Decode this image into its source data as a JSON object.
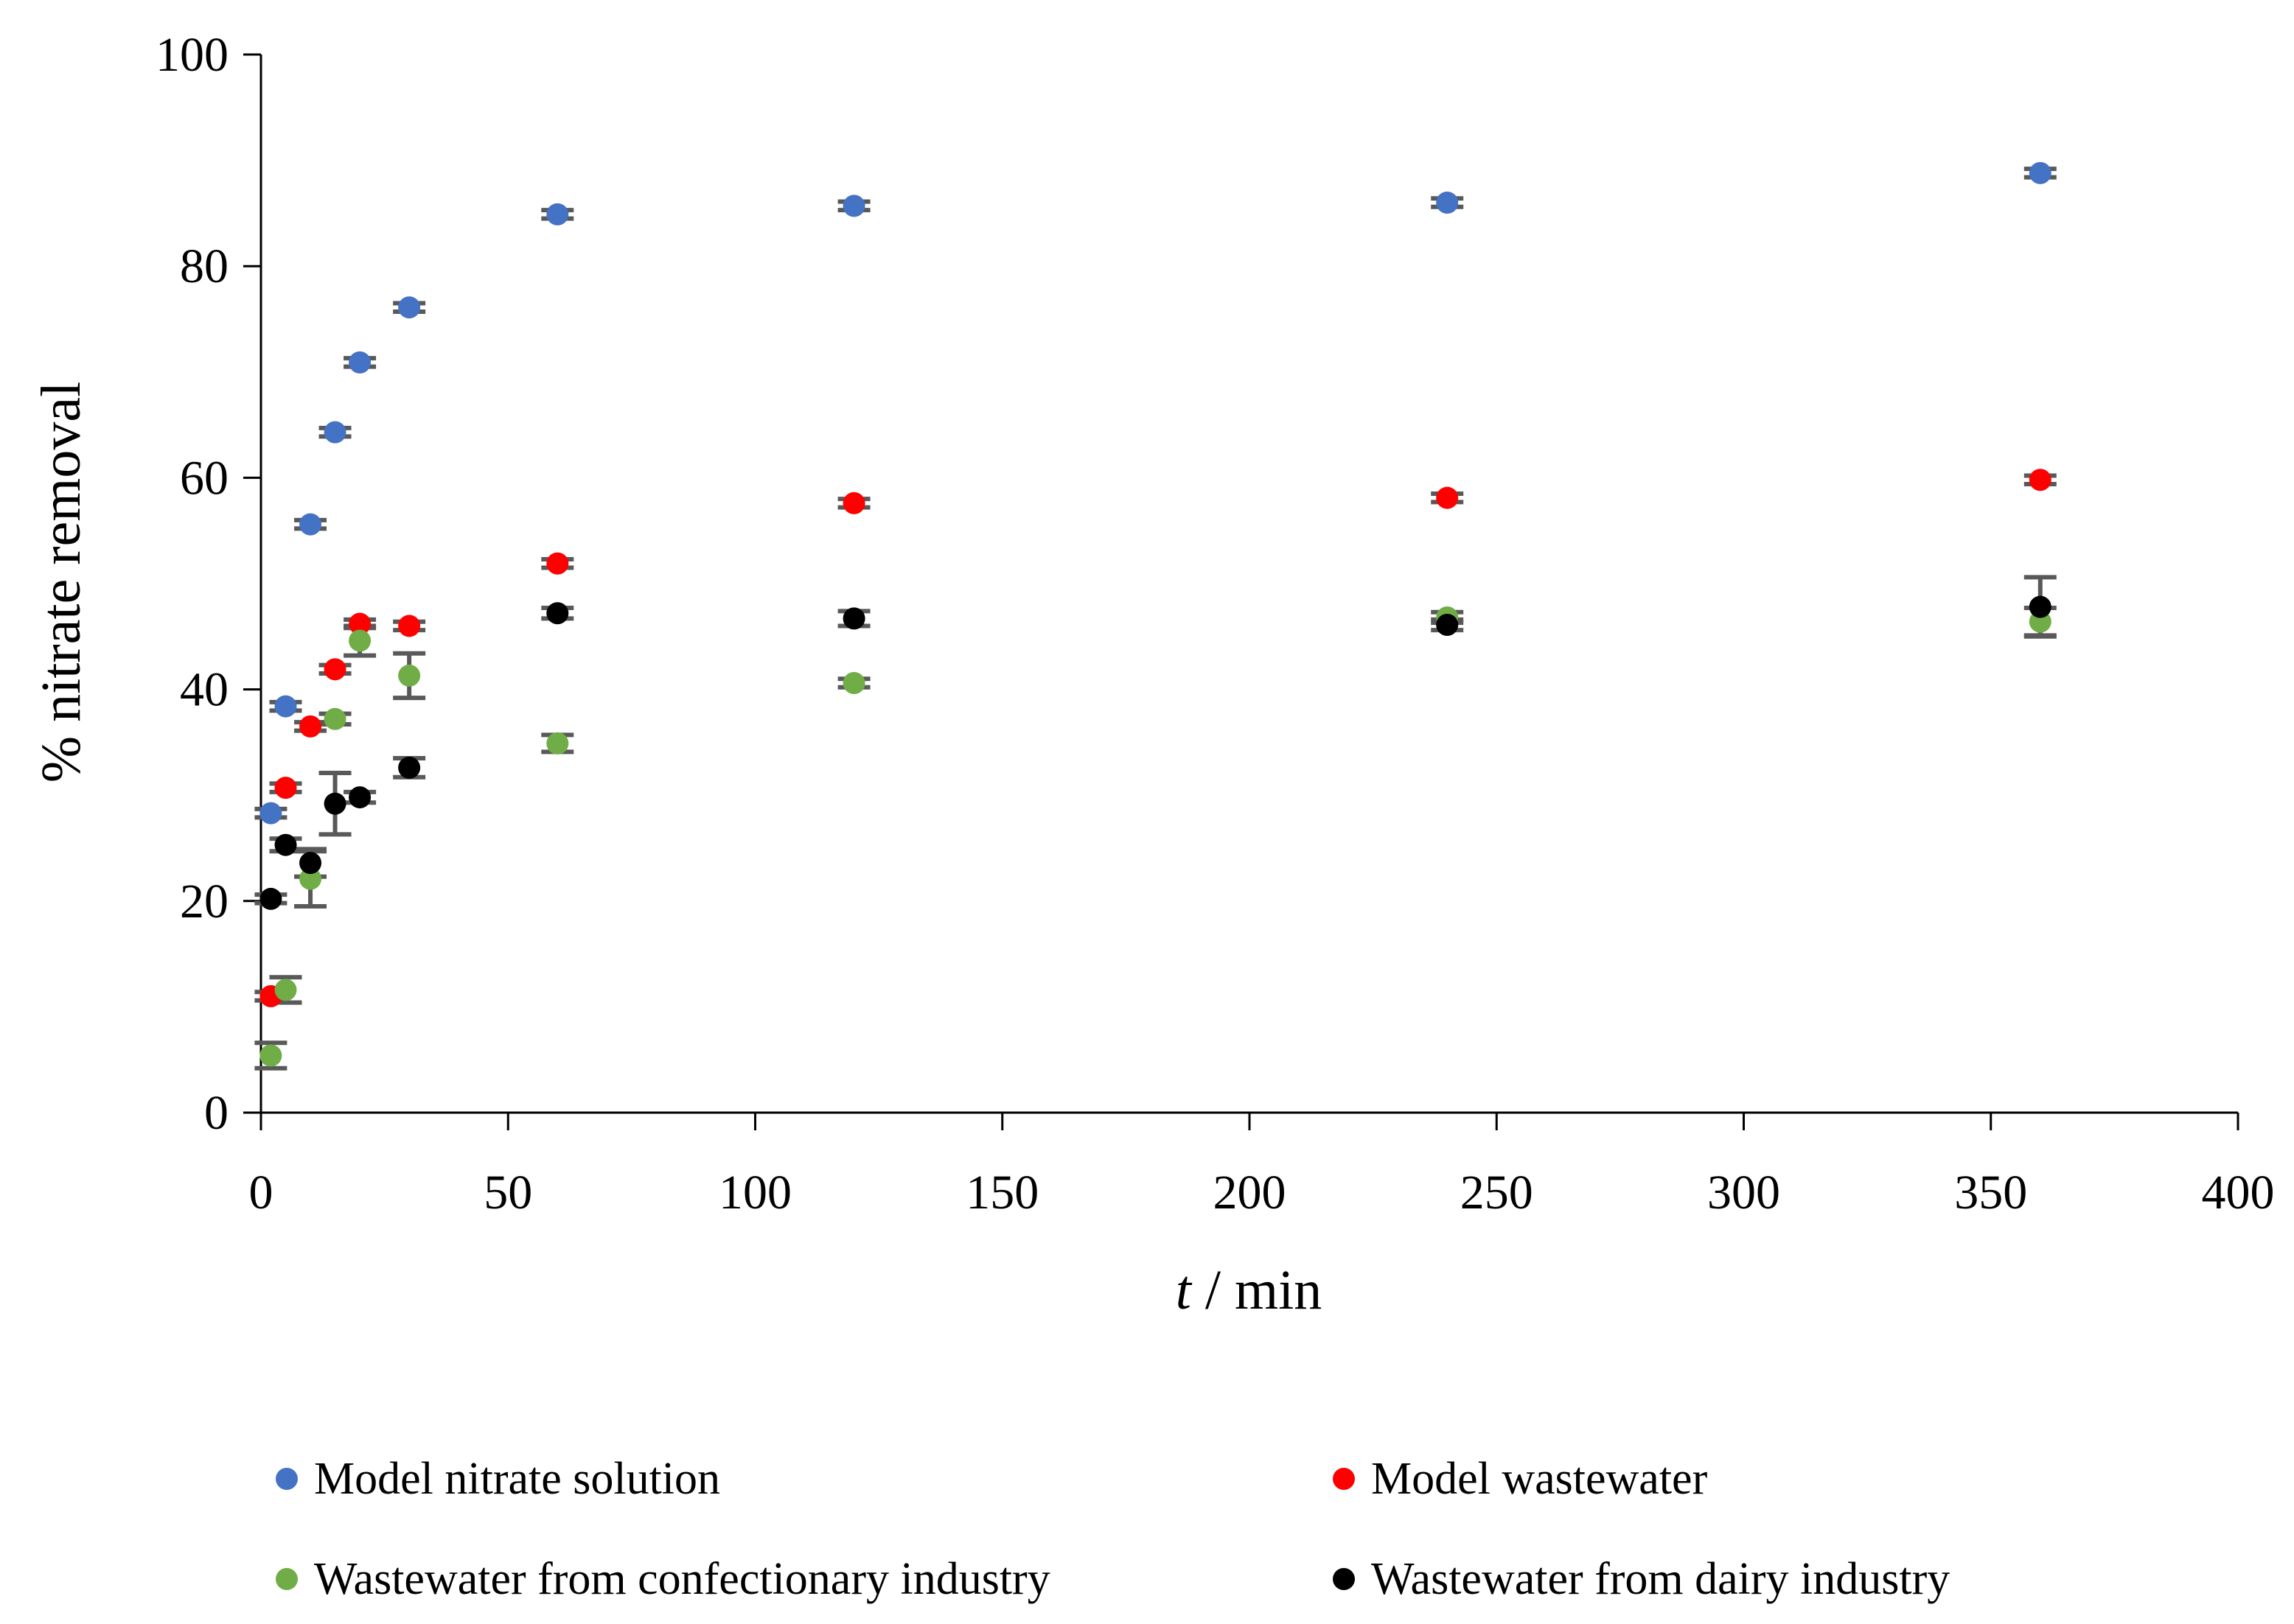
{
  "chart_data": {
    "type": "scatter",
    "title": "",
    "xlabel_italic": "t",
    "xlabel_rest": " / min",
    "ylabel": "% nitrate removal",
    "xlim": [
      0,
      400
    ],
    "ylim": [
      0,
      100
    ],
    "xticks": [
      0,
      50,
      100,
      150,
      200,
      250,
      300,
      350,
      400
    ],
    "yticks": [
      0,
      20,
      40,
      60,
      80,
      100
    ],
    "grid": false,
    "legend_position": "bottom",
    "series": [
      {
        "name": "Model nitrate solution",
        "color": "#4472C4",
        "x": [
          2,
          5,
          10,
          15,
          20,
          30,
          60,
          120,
          240,
          360
        ],
        "y": [
          28.3,
          38.4,
          55.6,
          64.3,
          70.9,
          76.1,
          84.9,
          85.7,
          86.0,
          88.8
        ],
        "err": [
          0.4,
          0.4,
          0.4,
          0.4,
          0.4,
          0.4,
          0.4,
          0.4,
          0.4,
          0.4
        ]
      },
      {
        "name": "Model wastewater",
        "color": "#FF0000",
        "x": [
          2,
          5,
          10,
          15,
          20,
          30,
          60,
          120,
          240,
          360
        ],
        "y": [
          11.0,
          30.7,
          36.5,
          41.9,
          46.2,
          46.0,
          51.9,
          57.6,
          58.1,
          59.8
        ],
        "err": [
          0.4,
          0.4,
          0.4,
          0.4,
          0.4,
          0.4,
          0.4,
          0.4,
          0.4,
          0.4
        ]
      },
      {
        "name": "Wastewater from confectionary industry",
        "color": "#70AD47",
        "x": [
          2,
          5,
          10,
          15,
          20,
          30,
          60,
          120,
          240,
          360
        ],
        "y": [
          5.4,
          11.6,
          22.1,
          37.2,
          44.6,
          41.3,
          34.9,
          40.6,
          46.8,
          46.4
        ],
        "err": [
          1.2,
          1.2,
          2.6,
          0.5,
          1.4,
          2.1,
          0.8,
          0.4,
          0.5,
          1.3
        ]
      },
      {
        "name": "Wastewater from dairy industry",
        "color": "#000000",
        "x": [
          2,
          5,
          10,
          15,
          20,
          30,
          60,
          120,
          240,
          360
        ],
        "y": [
          20.2,
          25.3,
          23.6,
          29.2,
          29.8,
          32.6,
          47.2,
          46.7,
          46.1,
          47.8
        ],
        "err": [
          0.4,
          0.6,
          1.3,
          2.9,
          0.5,
          0.9,
          0.5,
          0.7,
          0.5,
          2.8
        ]
      }
    ]
  }
}
